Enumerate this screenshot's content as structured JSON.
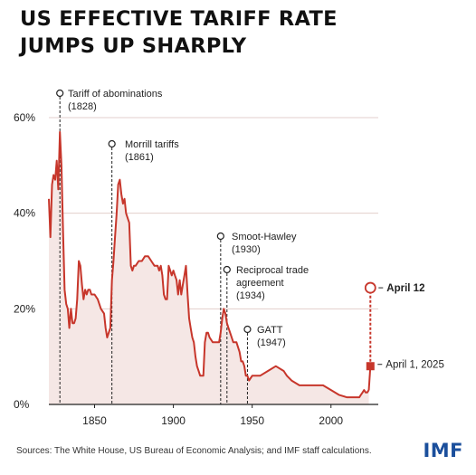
{
  "title_lines": [
    "US EFFECTIVE TARIFF RATE",
    "JUMPS UP SHARPLY"
  ],
  "source": "Sources: The White House, US Bureau of Economic Analysis; and IMF staff calculations.",
  "logo": "IMF",
  "colors": {
    "line": "#c7362b",
    "area": "#f5e7e5",
    "grid": "#e3cfcc",
    "axis": "#222222",
    "brand": "#1b4f9c"
  },
  "chart_data": {
    "type": "area",
    "title": "US EFFECTIVE TARIFF RATE JUMPS UP SHARPLY",
    "xlabel": "",
    "ylabel": "",
    "xlim": [
      1821,
      2030
    ],
    "ylim": [
      0,
      65
    ],
    "x_ticks": [
      1850,
      1900,
      1950,
      2000
    ],
    "y_ticks": [
      0,
      20,
      40,
      60
    ],
    "y_tick_labels": [
      "0%",
      "20%",
      "40%",
      "60%"
    ],
    "grid": "horizontal",
    "series": [
      {
        "x": [
          1821,
          1822,
          1823,
          1824,
          1825,
          1826,
          1827,
          1828,
          1829,
          1830,
          1831,
          1832,
          1833,
          1834,
          1835,
          1836,
          1837,
          1838,
          1839,
          1840,
          1841,
          1842,
          1843,
          1844,
          1845,
          1846,
          1847,
          1848,
          1850,
          1852,
          1854,
          1856,
          1857,
          1858,
          1860,
          1861,
          1862,
          1863,
          1864,
          1865,
          1866,
          1867,
          1868,
          1869,
          1870,
          1872,
          1873,
          1874,
          1875,
          1876,
          1878,
          1880,
          1882,
          1884,
          1886,
          1888,
          1890,
          1891,
          1892,
          1893,
          1894,
          1895,
          1896,
          1897,
          1898,
          1899,
          1900,
          1901,
          1902,
          1903,
          1904,
          1905,
          1906,
          1907,
          1908,
          1909,
          1910,
          1911,
          1912,
          1913,
          1914,
          1915,
          1916,
          1917,
          1918,
          1919,
          1920,
          1921,
          1922,
          1923,
          1925,
          1927,
          1929,
          1930,
          1931,
          1932,
          1933,
          1934,
          1935,
          1936,
          1938,
          1940,
          1942,
          1943,
          1944,
          1945,
          1946,
          1947,
          1948,
          1950,
          1955,
          1960,
          1965,
          1970,
          1972,
          1975,
          1980,
          1985,
          1990,
          1995,
          2000,
          2005,
          2010,
          2015,
          2017,
          2018,
          2019,
          2020,
          2021,
          2022,
          2023,
          2024
        ],
        "y": [
          43,
          35,
          46,
          48,
          47,
          51,
          45,
          57,
          50,
          36,
          24,
          21,
          20,
          16,
          20,
          17,
          17,
          18,
          22,
          30,
          29,
          25,
          22,
          24,
          23,
          24,
          24,
          23,
          23,
          22,
          20,
          19,
          16,
          14,
          16,
          26,
          30,
          35,
          40,
          46,
          47,
          44,
          42,
          43,
          40,
          38,
          29,
          28,
          29,
          29,
          30,
          30,
          31,
          31,
          30,
          29,
          29,
          28,
          29,
          27,
          23,
          22,
          22,
          29,
          28,
          27,
          28,
          27,
          26,
          23,
          26,
          23,
          25,
          27,
          29,
          23,
          18,
          16,
          14,
          13,
          10,
          8,
          7,
          6,
          6,
          6,
          13,
          15,
          15,
          14,
          13,
          13,
          13,
          15,
          18,
          20,
          19,
          17,
          16,
          15,
          13,
          13,
          11,
          9,
          9,
          8,
          6,
          6,
          5,
          6,
          6,
          7,
          8,
          7,
          6,
          5,
          4,
          4,
          4,
          4,
          3,
          2,
          1.5,
          1.5,
          1.5,
          1.5,
          2,
          2.5,
          3,
          2.5,
          2.5,
          3
        ]
      }
    ],
    "projections": [
      {
        "x": 2025,
        "y": 8,
        "label": "April 1, 2025",
        "marker": "square"
      },
      {
        "x": 2025,
        "y": 24.4,
        "label": "April 12",
        "marker": "open-circle"
      }
    ],
    "annotations": [
      {
        "year": 1828,
        "label_lines": [
          "Tariff of abominations",
          "(1828)"
        ]
      },
      {
        "year": 1861,
        "label_lines": [
          "Morrill tariffs",
          "(1861)"
        ]
      },
      {
        "year": 1930,
        "label_lines": [
          "Smoot-Hawley",
          "(1930)"
        ]
      },
      {
        "year": 1934,
        "label_lines": [
          "Reciprocal trade",
          "agreement",
          "(1934)"
        ]
      },
      {
        "year": 1947,
        "label_lines": [
          "GATT",
          "(1947)"
        ]
      }
    ]
  }
}
